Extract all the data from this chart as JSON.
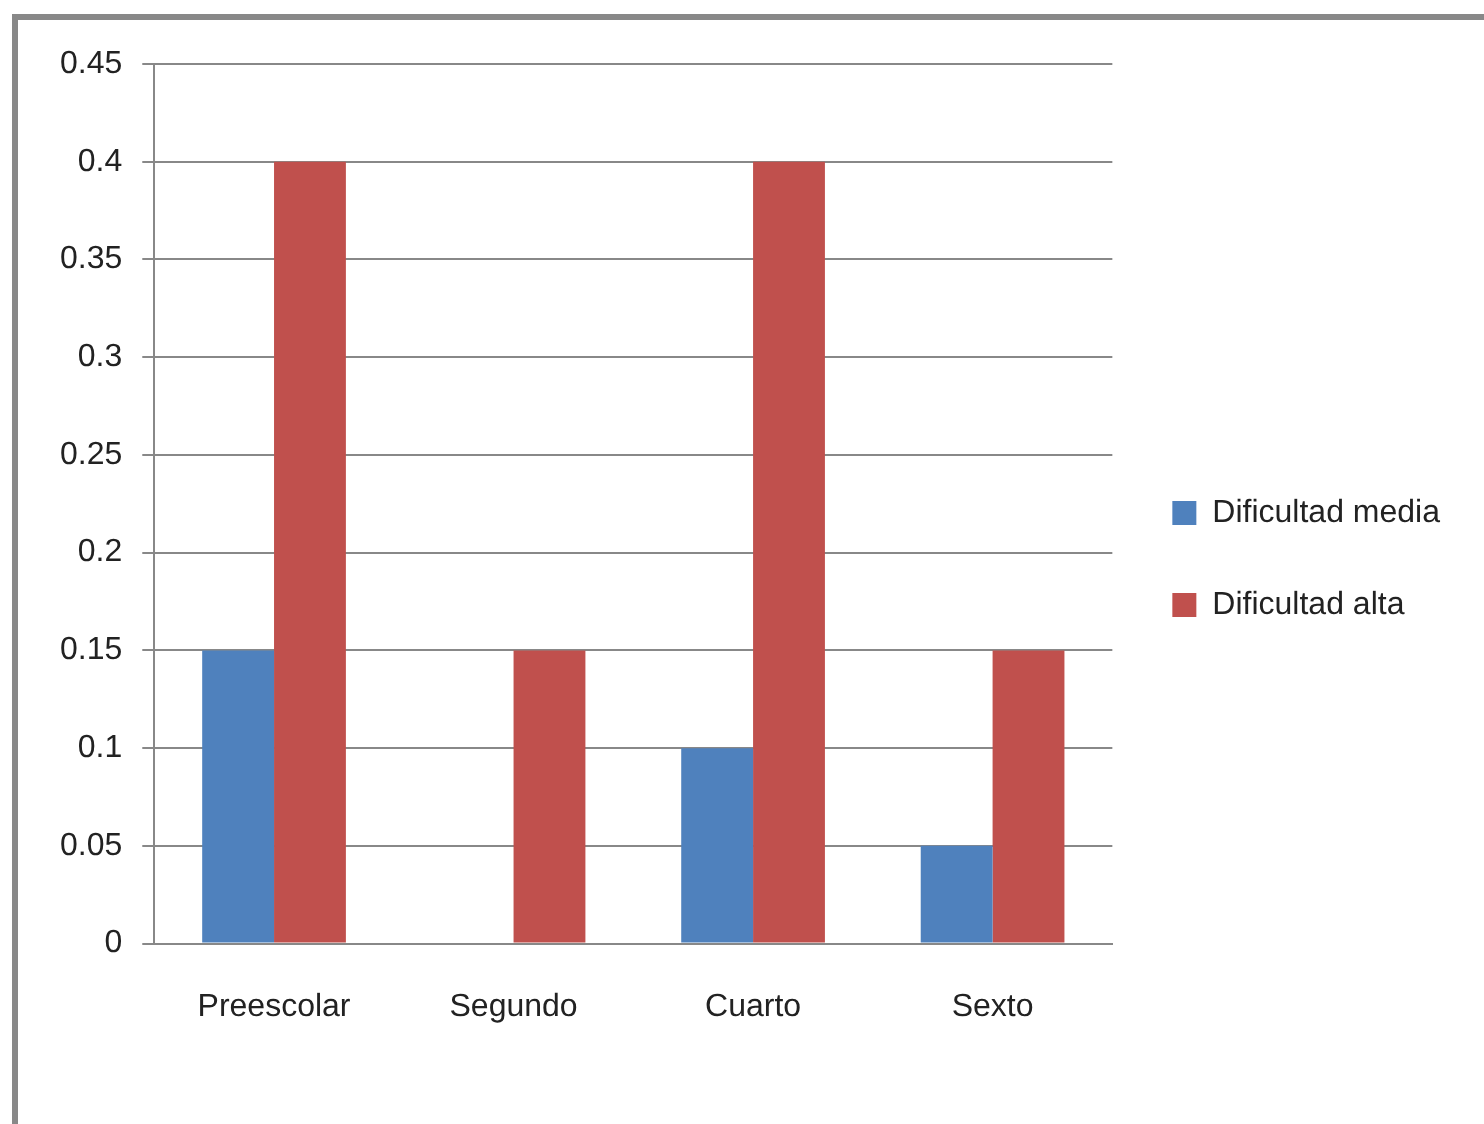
{
  "chart_data": {
    "type": "bar",
    "categories": [
      "Preescolar",
      "Segundo",
      "Cuarto",
      "Sexto"
    ],
    "series": [
      {
        "name": "Dificultad media",
        "color": "#4f81bd",
        "values": [
          0.15,
          0,
          0.1,
          0.05
        ]
      },
      {
        "name": "Dificultad alta",
        "color": "#c0504d",
        "values": [
          0.4,
          0.15,
          0.4,
          0.15
        ]
      }
    ],
    "ylim": [
      0,
      0.45
    ],
    "yticks": [
      0,
      0.05,
      0.1,
      0.15,
      0.2,
      0.25,
      0.3,
      0.35,
      0.4,
      0.45
    ],
    "grid": "y",
    "legend": "right"
  }
}
